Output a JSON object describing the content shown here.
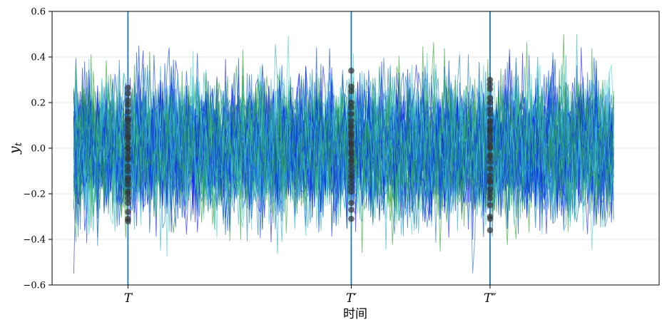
{
  "chart_data": {
    "type": "line",
    "title": "",
    "xlabel": "时间",
    "ylabel": "y",
    "ylabel_subscript": "t",
    "ylim": [
      -0.6,
      0.6
    ],
    "y_ticks": [
      -0.6,
      -0.4,
      -0.2,
      0.0,
      0.2,
      0.4,
      0.6
    ],
    "y_tick_labels": [
      "−0.6",
      "−0.4",
      "−0.2",
      "0.0",
      "0.2",
      "0.4",
      "0.6"
    ],
    "x_range": [
      -10,
      270
    ],
    "grid": true,
    "legend": "none",
    "series_count": 60,
    "series_length": 250,
    "series_colors": [
      "#1a1aff",
      "#0044dd",
      "#2ab0c8",
      "#48d1cc",
      "#2ca02c",
      "#1f77b4"
    ],
    "noise_std": 0.14,
    "markers": [
      {
        "label": "T",
        "x": 25,
        "y_values": [
          0.265,
          0.24,
          0.21,
          0.19,
          0.16,
          0.13,
          0.1,
          0.08,
          0.06,
          0.04,
          0.02,
          0.0,
          -0.02,
          -0.05,
          -0.08,
          -0.1,
          -0.13,
          -0.16,
          -0.19,
          -0.2,
          -0.22,
          -0.24,
          -0.28,
          -0.31,
          -0.32,
          0.05,
          -0.04,
          0.12,
          -0.14,
          0.0
        ]
      },
      {
        "label": "T′",
        "x": 128,
        "y_values": [
          0.34,
          0.27,
          0.25,
          0.2,
          0.18,
          0.15,
          0.12,
          0.09,
          0.07,
          0.05,
          0.03,
          0.01,
          -0.01,
          -0.03,
          -0.06,
          -0.08,
          -0.1,
          -0.13,
          -0.15,
          -0.17,
          -0.19,
          -0.24,
          -0.27,
          -0.31,
          0.06,
          -0.05,
          0.1,
          -0.12,
          0.02,
          -0.02
        ]
      },
      {
        "label": "T″",
        "x": 192,
        "y_values": [
          0.3,
          0.28,
          0.26,
          0.22,
          0.2,
          0.17,
          0.15,
          0.12,
          0.09,
          0.07,
          0.05,
          0.03,
          0.0,
          -0.03,
          -0.06,
          -0.09,
          -0.12,
          -0.15,
          -0.18,
          -0.2,
          -0.22,
          -0.25,
          -0.3,
          -0.31,
          -0.36,
          0.08,
          -0.04,
          0.11,
          -0.14,
          0.01
        ]
      }
    ],
    "marker_line_color": "#1f77b4",
    "marker_point_color": "#333333"
  }
}
